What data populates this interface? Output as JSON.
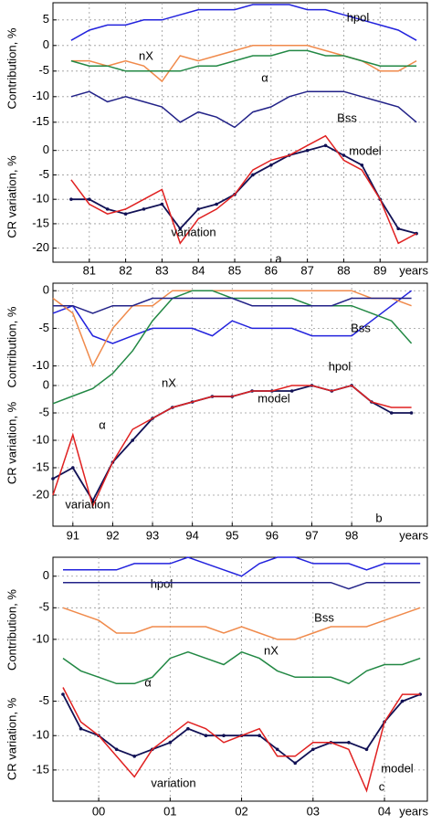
{
  "chart_data": [
    {
      "type": "line",
      "label": "a",
      "xlabel": "years",
      "grid": true,
      "x": [
        1980.5,
        1981,
        1981.5,
        1982,
        1982.5,
        1983,
        1983.5,
        1984,
        1984.5,
        1985,
        1985.5,
        1986,
        1986.5,
        1987,
        1987.5,
        1988,
        1988.5,
        1989,
        1989.5,
        1990
      ],
      "xlim": [
        1980,
        1990.3
      ],
      "xticks": [
        {
          "value": 1981,
          "label": "81"
        },
        {
          "value": 1982,
          "label": "82"
        },
        {
          "value": 1983,
          "label": "83"
        },
        {
          "value": 1984,
          "label": "84"
        },
        {
          "value": 1985,
          "label": "85"
        },
        {
          "value": 1986,
          "label": "86"
        },
        {
          "value": 1987,
          "label": "87"
        },
        {
          "value": 1988,
          "label": "88"
        },
        {
          "value": 1989,
          "label": "89"
        }
      ],
      "subplots": [
        {
          "ylabel": "Contribution, %",
          "ylim": [
            -17,
            8
          ],
          "yticks": [
            5,
            0,
            -5,
            -10,
            -15
          ],
          "series": [
            {
              "name": "hpol",
              "color": "#2222dd",
              "values": [
                1,
                3,
                4,
                4,
                5,
                5,
                6,
                7,
                7,
                7,
                8,
                8,
                8,
                7,
                7,
                6,
                5,
                4,
                3,
                1
              ]
            },
            {
              "name": "nX",
              "color": "#f08a4b",
              "values": [
                -3,
                -3,
                -4,
                -3,
                -4,
                -7,
                -2,
                -3,
                -2,
                -1,
                0,
                0,
                0,
                0,
                -1,
                -2,
                -3,
                -5,
                -5,
                -3
              ]
            },
            {
              "name": "α",
              "color": "#228844",
              "values": [
                -3,
                -4,
                -4,
                -5,
                -5,
                -5,
                -5,
                -4,
                -4,
                -3,
                -2,
                -2,
                -1,
                -1,
                -2,
                -2,
                -3,
                -4,
                -4,
                -4
              ]
            },
            {
              "name": "Bss",
              "color": "#222288",
              "values": [
                -10,
                -9,
                -11,
                -10,
                -11,
                -12,
                -15,
                -13,
                -14,
                -16,
                -13,
                -12,
                -10,
                -9,
                -9,
                -9,
                -10,
                -11,
                -12,
                -15
              ]
            }
          ]
        },
        {
          "ylabel": "CR variation, %",
          "ylim": [
            -21,
            2
          ],
          "yticks": [
            0,
            -5,
            -10,
            -15,
            -20
          ],
          "series": [
            {
              "name": "model",
              "color": "#111155",
              "markers": true,
              "values": [
                -10,
                -10,
                -12,
                -13,
                -12,
                -11,
                -16,
                -12,
                -11,
                -9,
                -5,
                -3,
                -1,
                0,
                1,
                -1,
                -3,
                -10,
                -16,
                -17
              ]
            },
            {
              "name": "variation",
              "color": "#e02020",
              "values": [
                -6,
                -11,
                -13,
                -12,
                -10,
                -8,
                -19,
                -14,
                -12,
                -9,
                -4,
                -2,
                -1,
                1,
                3,
                -2,
                -4,
                -10,
                -19,
                -17
              ]
            }
          ]
        }
      ]
    },
    {
      "type": "line",
      "label": "b",
      "xlabel": "years",
      "grid": true,
      "x": [
        1990.5,
        1991,
        1991.5,
        1992,
        1992.5,
        1993,
        1993.5,
        1994,
        1994.5,
        1995,
        1995.5,
        1996,
        1996.5,
        1997,
        1997.5,
        1998,
        1998.5,
        1999,
        1999.5
      ],
      "xlim": [
        1990.5,
        1999.9
      ],
      "xticks": [
        {
          "value": 1991,
          "label": "91"
        },
        {
          "value": 1992,
          "label": "92"
        },
        {
          "value": 1993,
          "label": "93"
        },
        {
          "value": 1994,
          "label": "94"
        },
        {
          "value": 1995,
          "label": "95"
        },
        {
          "value": 1996,
          "label": "96"
        },
        {
          "value": 1997,
          "label": "97"
        },
        {
          "value": 1998,
          "label": "98"
        }
      ],
      "subplots": [
        {
          "ylabel": "Contribution, %",
          "ylim": [
            -16,
            1
          ],
          "yticks": [
            0,
            -5,
            -10
          ],
          "series": [
            {
              "name": "hpol",
              "color": "#2222dd",
              "values": [
                -3,
                -2,
                -6,
                -7,
                -6,
                -5,
                -5,
                -5,
                -6,
                -4,
                -5,
                -5,
                -5,
                -6,
                -6,
                -6,
                -4,
                -2,
                0
              ]
            },
            {
              "name": "nX",
              "color": "#f08a4b",
              "values": [
                -1,
                -3,
                -10,
                -5,
                -2,
                -2,
                0,
                0,
                0,
                0,
                0,
                0,
                0,
                0,
                0,
                0,
                -1,
                -1,
                -2
              ]
            },
            {
              "name": "α",
              "color": "#228844",
              "values": [
                -15,
                -14,
                -13,
                -11,
                -8,
                -4,
                -1,
                0,
                0,
                -1,
                -1,
                -1,
                -1,
                -2,
                -2,
                -2,
                -3,
                -4,
                -7
              ]
            },
            {
              "name": "Bss",
              "color": "#222288",
              "values": [
                -2,
                -2,
                -3,
                -2,
                -2,
                -1,
                -1,
                -1,
                -1,
                -1,
                -2,
                -2,
                -2,
                -2,
                -2,
                -1,
                -1,
                -1,
                -1
              ]
            }
          ]
        },
        {
          "ylabel": "CR variation, %",
          "ylim": [
            -23,
            2
          ],
          "yticks": [
            0,
            -5,
            -10,
            -15,
            -20
          ],
          "series": [
            {
              "name": "model",
              "color": "#111155",
              "markers": true,
              "values": [
                -17,
                -15,
                -21,
                -14,
                -10,
                -6,
                -4,
                -3,
                -2,
                -2,
                -1,
                -1,
                -1,
                0,
                -1,
                0,
                -3,
                -5,
                -5
              ]
            },
            {
              "name": "variation",
              "color": "#e02020",
              "values": [
                -20,
                -9,
                -22,
                -14,
                -8,
                -6,
                -4,
                -3,
                -2,
                -2,
                -1,
                -1,
                0,
                0,
                -1,
                0,
                -3,
                -4,
                -4
              ]
            }
          ]
        }
      ]
    },
    {
      "type": "line",
      "label": "c",
      "xlabel": "years",
      "grid": true,
      "x": [
        1999.5,
        1999.75,
        2000,
        2000.25,
        2000.5,
        2000.75,
        2001,
        2001.25,
        2001.5,
        2001.75,
        2002,
        2002.25,
        2002.5,
        2002.75,
        2003,
        2003.25,
        2003.5,
        2003.75,
        2004,
        2004.25,
        2004.5
      ],
      "xlim": [
        1999.36,
        2004.6
      ],
      "xticks": [
        {
          "value": 2000,
          "label": "00"
        },
        {
          "value": 2001,
          "label": "01"
        },
        {
          "value": 2002,
          "label": "02"
        },
        {
          "value": 2003,
          "label": "03"
        },
        {
          "value": 2004,
          "label": "04"
        }
      ],
      "subplots": [
        {
          "ylabel": "Contribution, %",
          "ylim": [
            -20,
            3
          ],
          "yticks": [
            0,
            -5,
            -10
          ],
          "series": [
            {
              "name": "hpol",
              "color": "#2222dd",
              "values": [
                1,
                1,
                1,
                1,
                2,
                2,
                2,
                3,
                2,
                1,
                0,
                2,
                3,
                3,
                2,
                2,
                2,
                1,
                2,
                2,
                2
              ]
            },
            {
              "name": "Bss",
              "color": "#222288",
              "values": [
                -1,
                -1,
                -1,
                -1,
                -1,
                -1,
                -1,
                -1,
                -1,
                -1,
                -1,
                -1,
                -1,
                -1,
                -1,
                -1,
                -2,
                -1,
                -1,
                -1,
                -1
              ]
            },
            {
              "name": "nX",
              "color": "#f08a4b",
              "values": [
                -5,
                -6,
                -7,
                -9,
                -9,
                -8,
                -8,
                -8,
                -8,
                -9,
                -8,
                -9,
                -10,
                -10,
                -9,
                -8,
                -8,
                -8,
                -7,
                -6,
                -5
              ]
            },
            {
              "name": "α",
              "color": "#228844",
              "values": [
                -13,
                -15,
                -16,
                -17,
                -17,
                -16,
                -13,
                -12,
                -13,
                -14,
                -12,
                -13,
                -15,
                -16,
                -16,
                -16,
                -17,
                -15,
                -14,
                -14,
                -13
              ]
            }
          ]
        },
        {
          "ylabel": "CR variation, %",
          "ylim": [
            -19,
            -2
          ],
          "yticks": [
            -5,
            -10,
            -15
          ],
          "series": [
            {
              "name": "model",
              "color": "#111155",
              "markers": true,
              "values": [
                -4,
                -9,
                -10,
                -12,
                -13,
                -12,
                -11,
                -9,
                -10,
                -10,
                -10,
                -10,
                -12,
                -14,
                -12,
                -11,
                -11,
                -12,
                -8,
                -5,
                -4
              ]
            },
            {
              "name": "variation",
              "color": "#e02020",
              "values": [
                -3,
                -8,
                -10,
                -13,
                -16,
                -12,
                -10,
                -8,
                -9,
                -11,
                -10,
                -9,
                -13,
                -13,
                -11,
                -11,
                -12,
                -18,
                -8,
                -4,
                -4
              ]
            }
          ]
        }
      ]
    }
  ]
}
